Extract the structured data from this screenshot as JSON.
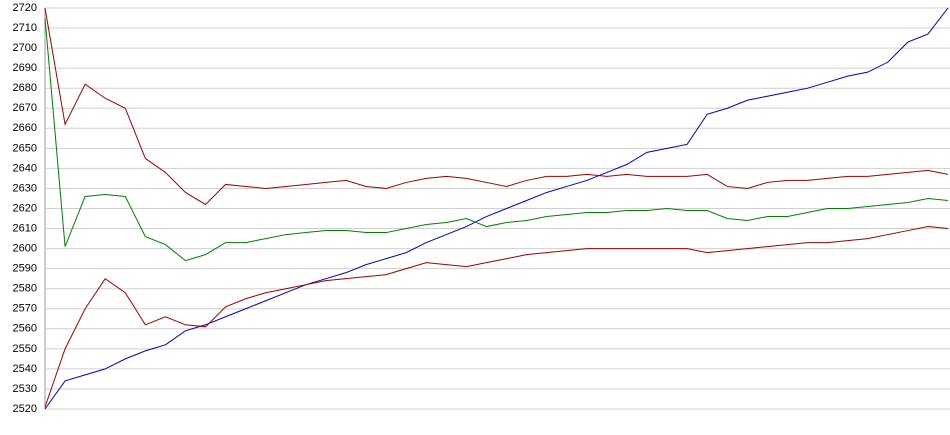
{
  "chart_data": {
    "type": "line",
    "categories": [
      null,
      null,
      null,
      null,
      null,
      null,
      null,
      null,
      null,
      null,
      null,
      null,
      null,
      null,
      null,
      null,
      null,
      null,
      null,
      null,
      null,
      null,
      null,
      null,
      null,
      null,
      null,
      null,
      null,
      null,
      null,
      null,
      null,
      null,
      null,
      null,
      null,
      null,
      null,
      null,
      null,
      null,
      null,
      null,
      null,
      null
    ],
    "series": [
      {
        "color": "#0000c0",
        "values": [
          2520,
          2534,
          2537,
          2540,
          2545,
          2549,
          2552,
          2559,
          2562,
          2566,
          2570,
          2574,
          2578,
          2582,
          2585,
          2588,
          2592,
          2595,
          2598,
          2603,
          2607,
          2611,
          2616,
          2620,
          2624,
          2628,
          2631,
          2634,
          2638,
          2642,
          2648,
          2650,
          2652,
          2667,
          2670,
          2674,
          2676,
          2678,
          2680,
          2683,
          2686,
          2688,
          2693,
          2703,
          2707,
          2720
        ]
      },
      {
        "color": "#a00000",
        "values": [
          2720,
          2662,
          2682,
          2675,
          2670,
          2645,
          2638,
          2628,
          2622,
          2632,
          2631,
          2630,
          2631,
          2632,
          2633,
          2634,
          2631,
          2630,
          2633,
          2635,
          2636,
          2635,
          2633,
          2631,
          2634,
          2636,
          2636,
          2637,
          2636,
          2637,
          2636,
          2636,
          2636,
          2637,
          2631,
          2630,
          2633,
          2634,
          2634,
          2635,
          2636,
          2636,
          2637,
          2638,
          2639,
          2637
        ]
      },
      {
        "color": "#008000",
        "values": [
          2715,
          2601,
          2626,
          2627,
          2626,
          2606,
          2602,
          2594,
          2597,
          2603,
          2603,
          2605,
          2607,
          2608,
          2609,
          2609,
          2608,
          2608,
          2610,
          2612,
          2613,
          2615,
          2611,
          2613,
          2614,
          2616,
          2617,
          2618,
          2618,
          2619,
          2619,
          2620,
          2619,
          2619,
          2615,
          2614,
          2616,
          2616,
          2618,
          2620,
          2620,
          2621,
          2622,
          2623,
          2625,
          2624
        ]
      },
      {
        "color": "#a00000",
        "values": [
          2521,
          2550,
          2570,
          2585,
          2578,
          2562,
          2566,
          2562,
          2561,
          2571,
          2575,
          2578,
          2580,
          2582,
          2584,
          2585,
          2586,
          2587,
          2590,
          2593,
          2592,
          2591,
          2593,
          2595,
          2597,
          2598,
          2599,
          2600,
          2600,
          2600,
          2600,
          2600,
          2600,
          2598,
          2599,
          2600,
          2601,
          2602,
          2603,
          2603,
          2604,
          2605,
          2607,
          2609,
          2611,
          2610
        ]
      }
    ],
    "ylim": [
      2520,
      2720
    ],
    "yticks": [
      2520,
      2530,
      2540,
      2550,
      2560,
      2570,
      2580,
      2590,
      2600,
      2610,
      2620,
      2630,
      2640,
      2650,
      2660,
      2670,
      2680,
      2690,
      2700,
      2710,
      2720
    ],
    "grid": true
  }
}
